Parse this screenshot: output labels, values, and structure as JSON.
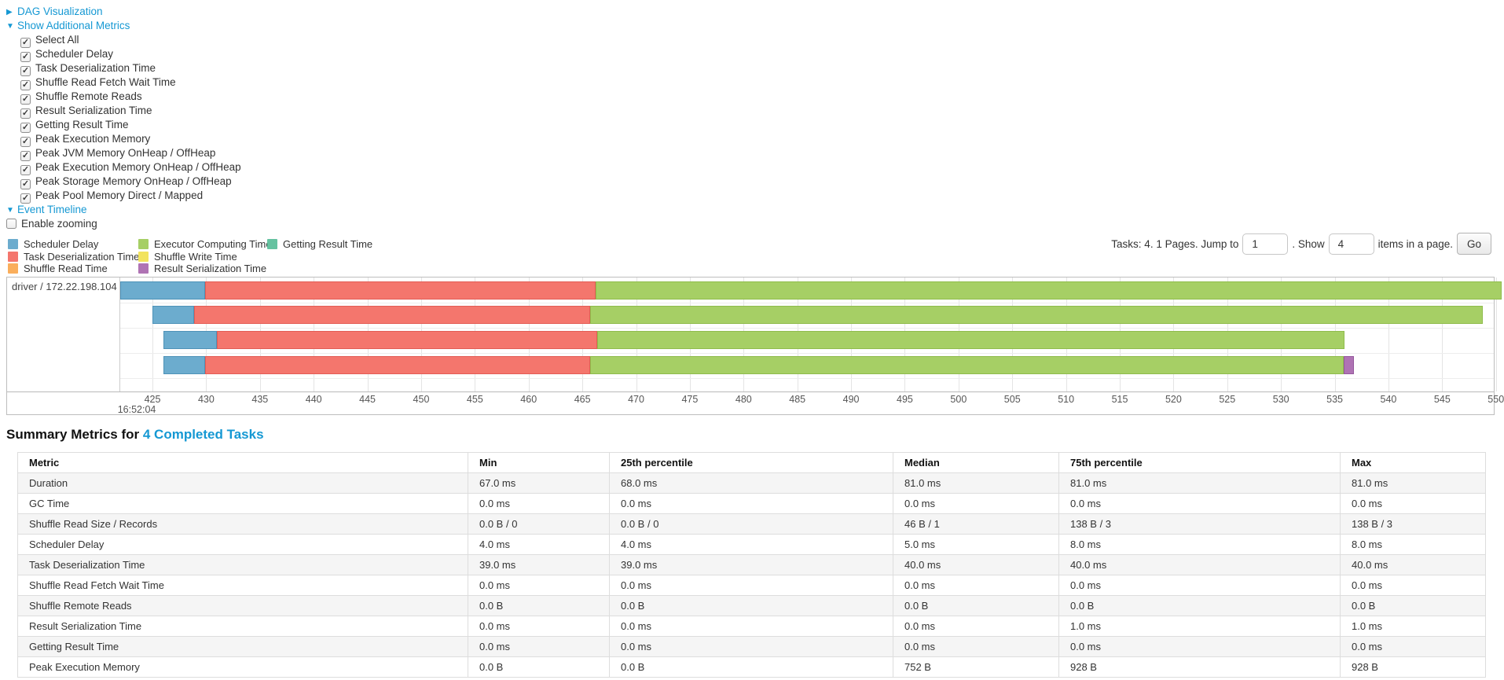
{
  "colors": {
    "link": "#1598d3",
    "scheduler_delay": "#6CACCE",
    "task_deserialization": "#F4766D",
    "shuffle_read": "#FAAE5C",
    "executor_computing": "#A6CF65",
    "shuffle_write": "#F2E35E",
    "result_serialization": "#AF73B4",
    "getting_result": "#65C2A0"
  },
  "toggles": {
    "dag_label": "DAG Visualization",
    "additional_metrics_label": "Show Additional Metrics",
    "event_timeline_label": "Event Timeline",
    "enable_zooming_label": "Enable zooming",
    "enable_zooming_checked": false
  },
  "metric_checkboxes": [
    {
      "label": "Select All",
      "checked": true
    },
    {
      "label": "Scheduler Delay",
      "checked": true
    },
    {
      "label": "Task Deserialization Time",
      "checked": true
    },
    {
      "label": "Shuffle Read Fetch Wait Time",
      "checked": true
    },
    {
      "label": "Shuffle Remote Reads",
      "checked": true
    },
    {
      "label": "Result Serialization Time",
      "checked": true
    },
    {
      "label": "Getting Result Time",
      "checked": true
    },
    {
      "label": "Peak Execution Memory",
      "checked": true
    },
    {
      "label": "Peak JVM Memory OnHeap / OffHeap",
      "checked": true
    },
    {
      "label": "Peak Execution Memory OnHeap / OffHeap",
      "checked": true
    },
    {
      "label": "Peak Storage Memory OnHeap / OffHeap",
      "checked": true
    },
    {
      "label": "Peak Pool Memory Direct / Mapped",
      "checked": true
    }
  ],
  "legend": {
    "columns": [
      [
        {
          "label": "Scheduler Delay",
          "color": "scheduler_delay"
        },
        {
          "label": "Task Deserialization Time",
          "color": "task_deserialization"
        },
        {
          "label": "Shuffle Read Time",
          "color": "shuffle_read"
        }
      ],
      [
        {
          "label": "Executor Computing Time",
          "color": "executor_computing"
        },
        {
          "label": "Shuffle Write Time",
          "color": "shuffle_write"
        },
        {
          "label": "Result Serialization Time",
          "color": "result_serialization"
        }
      ],
      [
        {
          "label": "Getting Result Time",
          "color": "getting_result"
        }
      ]
    ]
  },
  "pagination": {
    "prefix": "Tasks: 4. 1 Pages. Jump to",
    "jump_value": "1",
    "middle": ". Show",
    "show_value": "4",
    "suffix": "items in a page.",
    "go_label": "Go"
  },
  "chart_data": {
    "type": "timeline",
    "group_label": "driver / 172.22.198.104",
    "time_label": "16:52:04",
    "axis": {
      "min": 422.0,
      "max": 549.8,
      "tick_first": 425,
      "tick_step": 5,
      "tick_last": 550
    },
    "tasks": [
      {
        "segments": [
          {
            "type": "scheduler_delay",
            "from": 422.0,
            "to": 429.9
          },
          {
            "type": "task_deserialization",
            "from": 429.9,
            "to": 466.2
          },
          {
            "type": "executor_computing",
            "from": 466.2,
            "to": 550.5
          }
        ]
      },
      {
        "segments": [
          {
            "type": "scheduler_delay",
            "from": 425.0,
            "to": 428.9
          },
          {
            "type": "task_deserialization",
            "from": 428.9,
            "to": 465.7
          },
          {
            "type": "executor_computing",
            "from": 465.7,
            "to": 548.8
          }
        ]
      },
      {
        "segments": [
          {
            "type": "scheduler_delay",
            "from": 426.0,
            "to": 431.0
          },
          {
            "type": "task_deserialization",
            "from": 431.0,
            "to": 466.4
          },
          {
            "type": "executor_computing",
            "from": 466.4,
            "to": 535.9
          }
        ]
      },
      {
        "segments": [
          {
            "type": "scheduler_delay",
            "from": 426.0,
            "to": 429.9
          },
          {
            "type": "task_deserialization",
            "from": 429.9,
            "to": 465.7
          },
          {
            "type": "executor_computing",
            "from": 465.7,
            "to": 535.8
          },
          {
            "type": "result_serialization",
            "from": 535.8,
            "to": 536.8
          }
        ]
      }
    ]
  },
  "summary": {
    "heading_prefix": "Summary Metrics for",
    "heading_link": "4 Completed Tasks",
    "headers": [
      "Metric",
      "Min",
      "25th percentile",
      "Median",
      "75th percentile",
      "Max"
    ],
    "rows": [
      {
        "metric": "Duration",
        "values": [
          "67.0 ms",
          "68.0 ms",
          "81.0 ms",
          "81.0 ms",
          "81.0 ms"
        ]
      },
      {
        "metric": "GC Time",
        "values": [
          "0.0 ms",
          "0.0 ms",
          "0.0 ms",
          "0.0 ms",
          "0.0 ms"
        ]
      },
      {
        "metric": "Shuffle Read Size / Records",
        "values": [
          "0.0 B / 0",
          "0.0 B / 0",
          "46 B / 1",
          "138 B / 3",
          "138 B / 3"
        ]
      },
      {
        "metric": "Scheduler Delay",
        "values": [
          "4.0 ms",
          "4.0 ms",
          "5.0 ms",
          "8.0 ms",
          "8.0 ms"
        ]
      },
      {
        "metric": "Task Deserialization Time",
        "values": [
          "39.0 ms",
          "39.0 ms",
          "40.0 ms",
          "40.0 ms",
          "40.0 ms"
        ]
      },
      {
        "metric": "Shuffle Read Fetch Wait Time",
        "values": [
          "0.0 ms",
          "0.0 ms",
          "0.0 ms",
          "0.0 ms",
          "0.0 ms"
        ]
      },
      {
        "metric": "Shuffle Remote Reads",
        "values": [
          "0.0 B",
          "0.0 B",
          "0.0 B",
          "0.0 B",
          "0.0 B"
        ]
      },
      {
        "metric": "Result Serialization Time",
        "values": [
          "0.0 ms",
          "0.0 ms",
          "0.0 ms",
          "1.0 ms",
          "1.0 ms"
        ]
      },
      {
        "metric": "Getting Result Time",
        "values": [
          "0.0 ms",
          "0.0 ms",
          "0.0 ms",
          "0.0 ms",
          "0.0 ms"
        ]
      },
      {
        "metric": "Peak Execution Memory",
        "values": [
          "0.0 B",
          "0.0 B",
          "752 B",
          "928 B",
          "928 B"
        ]
      }
    ]
  }
}
